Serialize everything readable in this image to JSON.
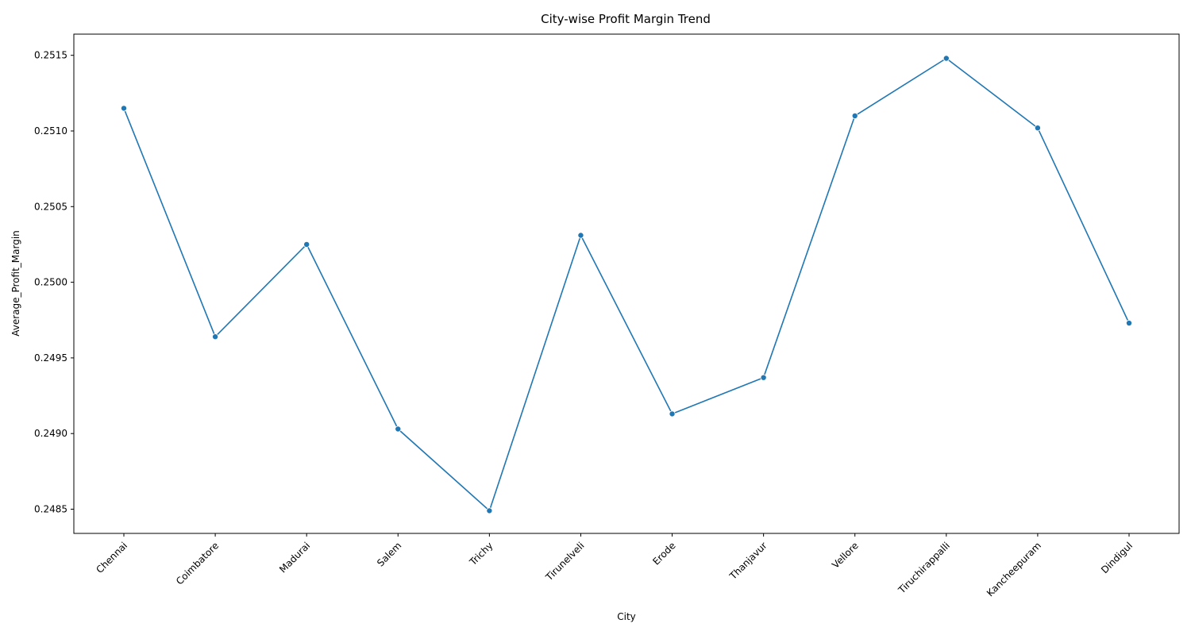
{
  "chart_data": {
    "type": "line",
    "title": "City-wise Profit Margin Trend",
    "xlabel": "City",
    "ylabel": "Average_Profit_Margin",
    "categories": [
      "Chennai",
      "Coimbatore",
      "Madurai",
      "Salem",
      "Trichy",
      "Tirunelveli",
      "Erode",
      "Thanjavur",
      "Vellore",
      "Tiruchirappalli",
      "Kancheepuram",
      "Dindigul"
    ],
    "values": [
      0.25115,
      0.24964,
      0.25025,
      0.24903,
      0.24849,
      0.25031,
      0.24913,
      0.24937,
      0.2511,
      0.25148,
      0.25102,
      0.24973
    ],
    "ylim": [
      0.24834,
      0.25164
    ],
    "yticks": [
      "0.2485",
      "0.2490",
      "0.2495",
      "0.2500",
      "0.2505",
      "0.2510",
      "0.2515"
    ],
    "ytick_values": [
      0.2485,
      0.249,
      0.2495,
      0.25,
      0.2505,
      0.251,
      0.2515
    ],
    "line_color": "#1f77b4",
    "grid": false,
    "legend": "none"
  }
}
